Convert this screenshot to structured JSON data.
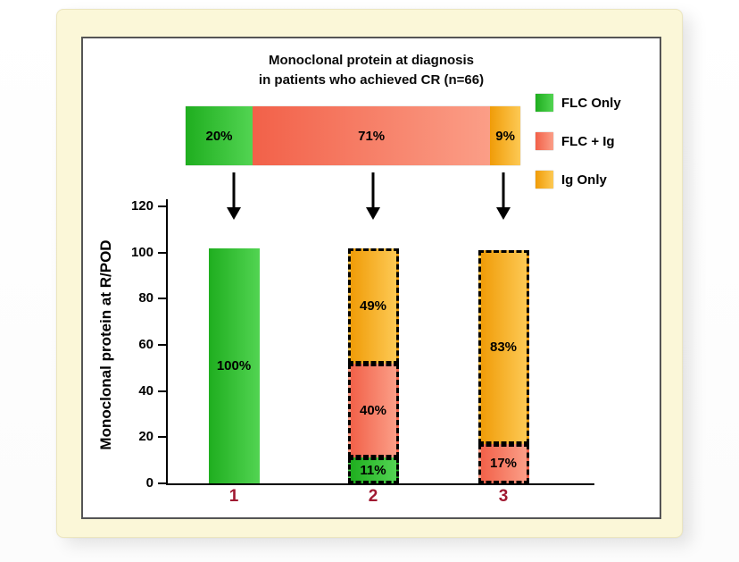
{
  "title": {
    "line1": "Monoclonal protein at diagnosis",
    "line2": "in patients who achieved CR (n=66)"
  },
  "legend": [
    {
      "label": "FLC Only",
      "color": "#2dbb2d",
      "gradient": [
        "#1fae1f",
        "#52d452"
      ]
    },
    {
      "label": "FLC + Ig",
      "color": "#f4775c",
      "gradient": [
        "#f26149",
        "#fb9e87"
      ]
    },
    {
      "label": "Ig Only",
      "color": "#f5a51d",
      "gradient": [
        "#f09c08",
        "#fdc954"
      ]
    }
  ],
  "axis_colors": {
    "category_label": "#a01931"
  },
  "chart_data": {
    "type": "bar",
    "stacked": true,
    "title": "Monoclonal protein at diagnosis in patients who achieved CR (n=66)",
    "ylabel": "Monoclonal protein at R/POD",
    "ylim": [
      0,
      120
    ],
    "yticks": [
      0,
      20,
      40,
      60,
      80,
      100,
      120
    ],
    "categories": [
      "1",
      "2",
      "3"
    ],
    "top_bar": {
      "segments": [
        {
          "series": "FLC Only",
          "value": 20,
          "label": "20%"
        },
        {
          "series": "FLC + Ig",
          "value": 71,
          "label": "71%"
        },
        {
          "series": "Ig Only",
          "value": 9,
          "label": "9%"
        }
      ]
    },
    "bars": [
      {
        "category": "1",
        "total_height_units": 102,
        "segments": [
          {
            "series": "FLC Only",
            "value": 100,
            "label": "100%",
            "dashed": false
          }
        ]
      },
      {
        "category": "2",
        "total_height_units": 102,
        "segments": [
          {
            "series": "FLC Only",
            "value": 11,
            "label": "11%",
            "dashed": true
          },
          {
            "series": "FLC + Ig",
            "value": 40,
            "label": "40%",
            "dashed": true
          },
          {
            "series": "Ig Only",
            "value": 49,
            "label": "49%",
            "dashed": true
          }
        ]
      },
      {
        "category": "3",
        "total_height_units": 101,
        "segments": [
          {
            "series": "FLC + Ig",
            "value": 17,
            "label": "17%",
            "dashed": true
          },
          {
            "series": "Ig Only",
            "value": 83,
            "label": "83%",
            "dashed": true
          }
        ]
      }
    ]
  }
}
